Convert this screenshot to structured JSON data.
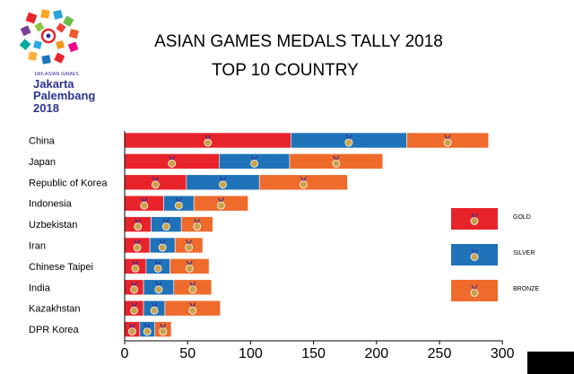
{
  "logo": {
    "small_text": "18th ASIAN GAMES",
    "line1": "Jakarta",
    "line2": "Palembang",
    "line3": "2018"
  },
  "colors": {
    "gold": "#e8242a",
    "silver": "#2073b8",
    "bronze": "#ef6b2c",
    "medal": "#c9a24a",
    "axis": "#000000"
  },
  "chart_data": {
    "type": "bar",
    "orientation": "horizontal",
    "stacked": true,
    "title": "ASIAN GAMES MEDALS TALLY 2018",
    "subtitle": "TOP 10 COUNTRY",
    "categories": [
      "China",
      "Japan",
      "Republic of Korea",
      "Indonesia",
      "Uzbekistan",
      "Iran",
      "Chinese Taipei",
      "India",
      "Kazakhstan",
      "DPR Korea"
    ],
    "series": [
      {
        "name": "GOLD",
        "color": "#e8242a",
        "values": [
          132,
          75,
          49,
          31,
          21,
          20,
          17,
          15,
          15,
          12
        ]
      },
      {
        "name": "SILVER",
        "color": "#2073b8",
        "values": [
          92,
          56,
          58,
          24,
          24,
          20,
          19,
          24,
          17,
          12
        ]
      },
      {
        "name": "BRONZE",
        "color": "#ef6b2c",
        "values": [
          65,
          74,
          70,
          43,
          25,
          22,
          31,
          30,
          44,
          13
        ]
      }
    ],
    "xlim": [
      0,
      300
    ],
    "xticks": [
      "0",
      "50",
      "100",
      "150",
      "200",
      "250",
      "300"
    ],
    "xlabel": "",
    "ylabel": "",
    "grid": false,
    "legend_position": "right"
  }
}
